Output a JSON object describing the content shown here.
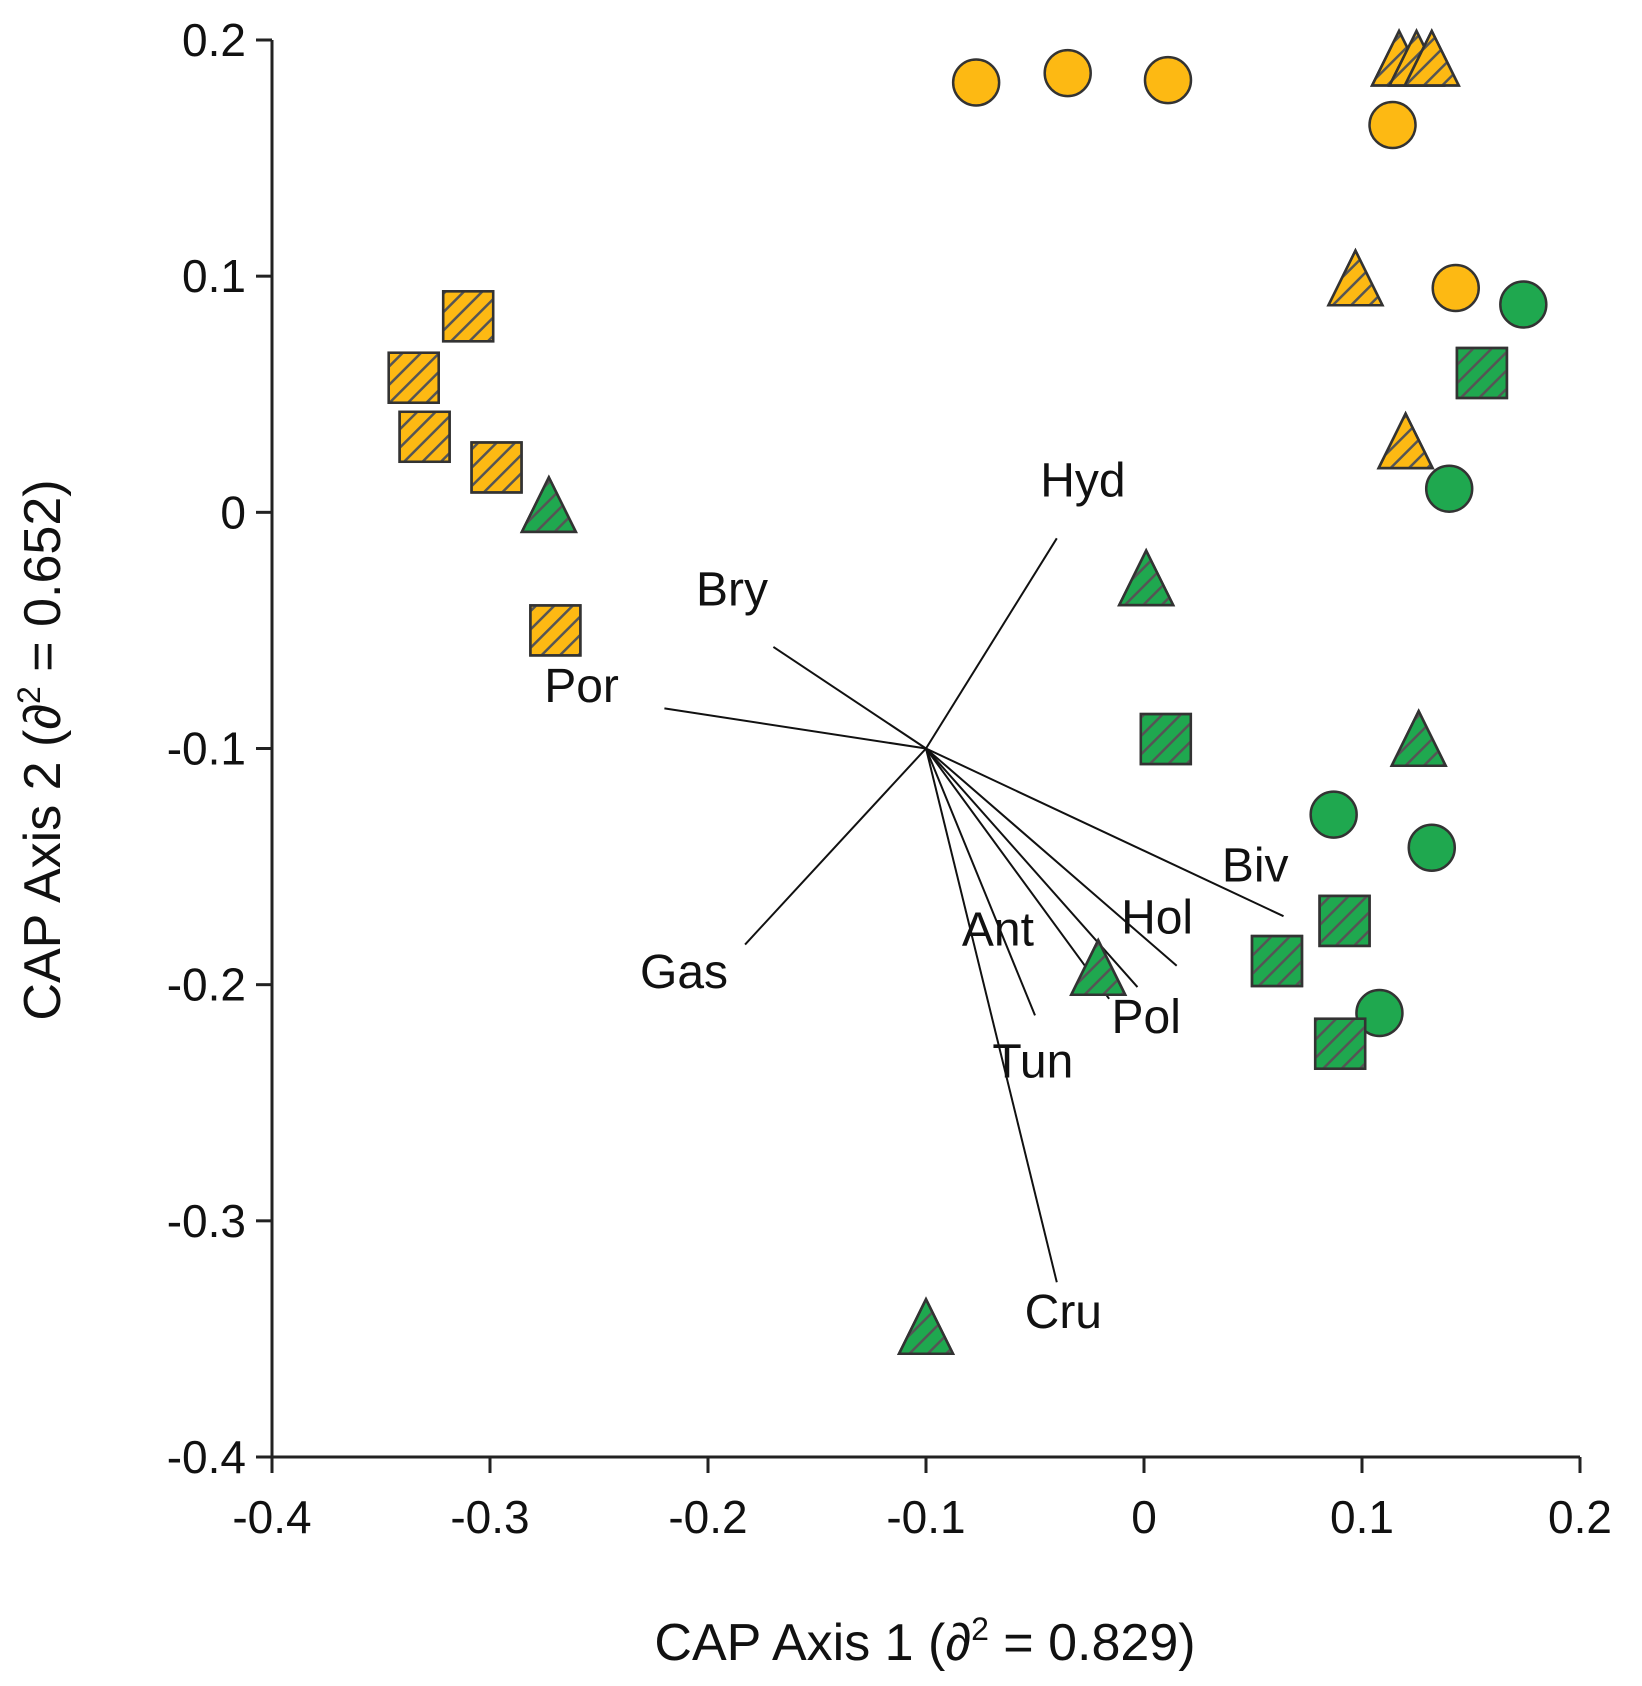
{
  "chart_data": {
    "type": "scatter",
    "title": "",
    "xlabel": {
      "prefix": "CAP Axis 1 (",
      "symbol": "∂",
      "sup": "2",
      "suffix": " = 0.829)"
    },
    "ylabel": {
      "prefix": "CAP Axis 2 (",
      "symbol": "∂",
      "sup": "2",
      "suffix": " = 0.652)"
    },
    "xlim": [
      -0.4,
      0.2
    ],
    "ylim": [
      -0.4,
      0.2
    ],
    "xticks": [
      -0.4,
      -0.3,
      -0.2,
      -0.1,
      0,
      0.1,
      0.2
    ],
    "xtick_labels": [
      "-0.4",
      "-0.3",
      "-0.2",
      "-0.1",
      "0",
      "0.1",
      "0.2"
    ],
    "yticks": [
      0.2,
      0.1,
      0,
      -0.1,
      -0.2,
      -0.3,
      -0.4
    ],
    "ytick_labels": [
      "0.2",
      "0.1",
      "0",
      "-0.1",
      "-0.2",
      "-0.3",
      "-0.4"
    ],
    "colors": {
      "yellow": "#FDB913",
      "green": "#1FA84F",
      "hatch": "#555555",
      "outline": "#333333"
    },
    "series": [
      {
        "name": "yellow-circle",
        "shape": "circle",
        "color": "yellow",
        "hatched": false,
        "points": [
          [
            -0.077,
            0.182
          ],
          [
            -0.035,
            0.186
          ],
          [
            0.011,
            0.183
          ],
          [
            0.114,
            0.164
          ],
          [
            0.143,
            0.095
          ]
        ]
      },
      {
        "name": "yellow-triangle",
        "shape": "triangle",
        "color": "yellow",
        "hatched": true,
        "points": [
          [
            0.117,
            0.191
          ],
          [
            0.125,
            0.191
          ],
          [
            0.132,
            0.191
          ],
          [
            0.097,
            0.098
          ],
          [
            0.12,
            0.029
          ]
        ]
      },
      {
        "name": "yellow-square",
        "shape": "square",
        "color": "yellow",
        "hatched": true,
        "points": [
          [
            -0.31,
            0.083
          ],
          [
            -0.335,
            0.057
          ],
          [
            -0.33,
            0.032
          ],
          [
            -0.297,
            0.019
          ],
          [
            -0.27,
            -0.05
          ]
        ]
      },
      {
        "name": "green-circle",
        "shape": "circle",
        "color": "green",
        "hatched": false,
        "points": [
          [
            0.174,
            0.088
          ],
          [
            0.14,
            0.01
          ],
          [
            0.087,
            -0.128
          ],
          [
            0.132,
            -0.142
          ],
          [
            0.108,
            -0.212
          ]
        ]
      },
      {
        "name": "green-triangle",
        "shape": "triangle",
        "color": "green",
        "hatched": true,
        "points": [
          [
            -0.273,
            0.002
          ],
          [
            0.001,
            -0.029
          ],
          [
            0.126,
            -0.097
          ],
          [
            -0.021,
            -0.194
          ],
          [
            -0.1,
            -0.346
          ]
        ]
      },
      {
        "name": "green-square",
        "shape": "square",
        "color": "green",
        "hatched": true,
        "points": [
          [
            0.155,
            0.059
          ],
          [
            0.01,
            -0.096
          ],
          [
            0.092,
            -0.173
          ],
          [
            0.061,
            -0.19
          ],
          [
            0.09,
            -0.225
          ]
        ]
      }
    ],
    "vectors": {
      "origin": [
        -0.1,
        -0.1
      ],
      "items": [
        {
          "label": "Hyd",
          "end": [
            -0.04,
            -0.011
          ],
          "label_at": [
            -0.028,
            0.012
          ]
        },
        {
          "label": "Bry",
          "end": [
            -0.17,
            -0.057
          ],
          "label_at": [
            -0.189,
            -0.034
          ]
        },
        {
          "label": "Por",
          "end": [
            -0.22,
            -0.083
          ],
          "label_at": [
            -0.258,
            -0.075
          ]
        },
        {
          "label": "Gas",
          "end": [
            -0.183,
            -0.183
          ],
          "label_at": [
            -0.211,
            -0.196
          ]
        },
        {
          "label": "Biv",
          "end": [
            0.064,
            -0.171
          ],
          "label_at": [
            0.051,
            -0.151
          ]
        },
        {
          "label": "Hol",
          "end": [
            0.015,
            -0.192
          ],
          "label_at": [
            0.006,
            -0.173
          ]
        },
        {
          "label": "Ant",
          "end": [
            -0.003,
            -0.201
          ],
          "label_at": [
            -0.067,
            -0.178
          ]
        },
        {
          "label": "Pol",
          "end": [
            -0.016,
            -0.206
          ],
          "label_at": [
            0.001,
            -0.215
          ]
        },
        {
          "label": "Tun",
          "end": [
            -0.05,
            -0.213
          ],
          "label_at": [
            -0.051,
            -0.234
          ]
        },
        {
          "label": "Cru",
          "end": [
            -0.04,
            -0.326
          ],
          "label_at": [
            -0.037,
            -0.34
          ]
        }
      ]
    }
  }
}
